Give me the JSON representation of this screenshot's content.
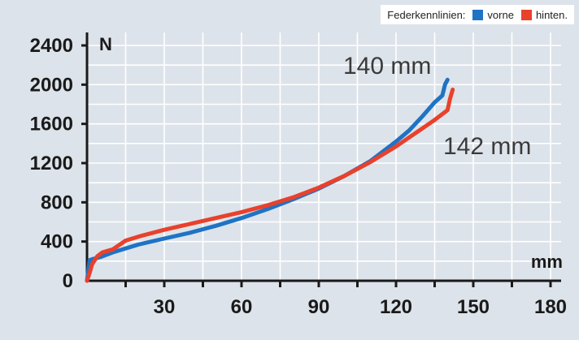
{
  "legend": {
    "title": "Federkennlinien:",
    "items": [
      {
        "label": "vorne",
        "color": "#1f73c4"
      },
      {
        "label": "hinten.",
        "color": "#e8412c"
      }
    ]
  },
  "chart_data": {
    "type": "line",
    "title": "",
    "xlabel": "mm",
    "ylabel": "N",
    "xlim": [
      0,
      180
    ],
    "ylim": [
      0,
      2400
    ],
    "x_ticks": [
      30,
      60,
      90,
      120,
      150,
      180
    ],
    "y_ticks": [
      0,
      400,
      800,
      1200,
      1600,
      2000,
      2400
    ],
    "grid": true,
    "legend_position": "top-right",
    "series": [
      {
        "name": "vorne",
        "color": "#1f73c4",
        "x": [
          0,
          1,
          2,
          5,
          10,
          20,
          30,
          40,
          50,
          60,
          70,
          80,
          90,
          100,
          110,
          120,
          125,
          130,
          135,
          138,
          139,
          140
        ],
        "y": [
          0,
          210,
          220,
          240,
          290,
          370,
          430,
          490,
          560,
          640,
          730,
          830,
          940,
          1070,
          1220,
          1420,
          1530,
          1670,
          1820,
          1890,
          2000,
          2050
        ]
      },
      {
        "name": "hinten.",
        "color": "#e8412c",
        "x": [
          0,
          1,
          2,
          4,
          6,
          10,
          15,
          20,
          30,
          40,
          50,
          60,
          70,
          80,
          90,
          100,
          110,
          120,
          125,
          130,
          135,
          140,
          141,
          142
        ],
        "y": [
          0,
          80,
          170,
          250,
          290,
          320,
          410,
          450,
          520,
          580,
          640,
          700,
          770,
          850,
          950,
          1070,
          1210,
          1370,
          1460,
          1550,
          1640,
          1740,
          1860,
          1950
        ]
      }
    ],
    "annotations": [
      {
        "text": "140 mm",
        "x": 140,
        "y": 2000
      },
      {
        "text": "142 mm",
        "x": 142,
        "y": 1950
      }
    ]
  }
}
